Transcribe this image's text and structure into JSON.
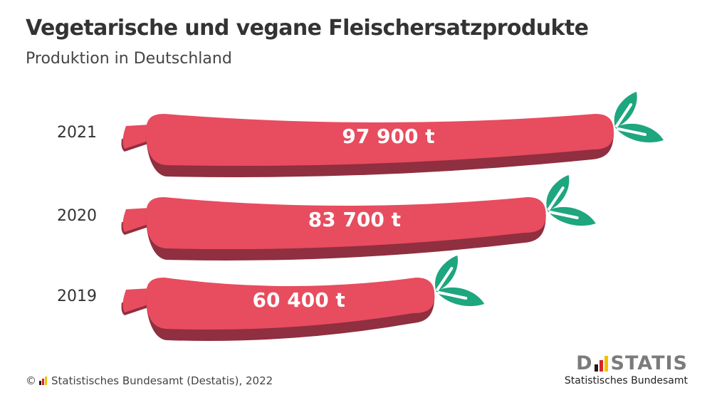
{
  "title": "Vegetarische und vegane Fleischersatzprodukte",
  "subtitle": "Produktion in Deutschland",
  "chart_data": {
    "type": "bar",
    "orientation": "horizontal",
    "categories": [
      "2021",
      "2020",
      "2019"
    ],
    "values": [
      97900,
      83700,
      60400
    ],
    "value_labels": [
      "97 900 t",
      "83 700 t",
      "60 400 t"
    ],
    "unit": "t",
    "title": "Vegetarische und vegane Fleischersatzprodukte",
    "subtitle": "Produktion in Deutschland",
    "grid": false,
    "legend": "none",
    "colors": {
      "sausage": "#e84c5f",
      "sausage_shadow": "#8f2f40",
      "leaf": "#1ea67e"
    }
  },
  "footer": {
    "copyright": "©",
    "source": "Statistisches Bundesamt (Destatis), 2022"
  },
  "logo": {
    "word_left": "D",
    "word_right": "STATIS",
    "sub": "Statistisches Bundesamt"
  },
  "flag_colors": [
    "#1a1a1a",
    "#d9242a",
    "#f2c200"
  ],
  "icons": {
    "bar_mark": "sausage-icon",
    "leaf": "leaf-icon"
  }
}
